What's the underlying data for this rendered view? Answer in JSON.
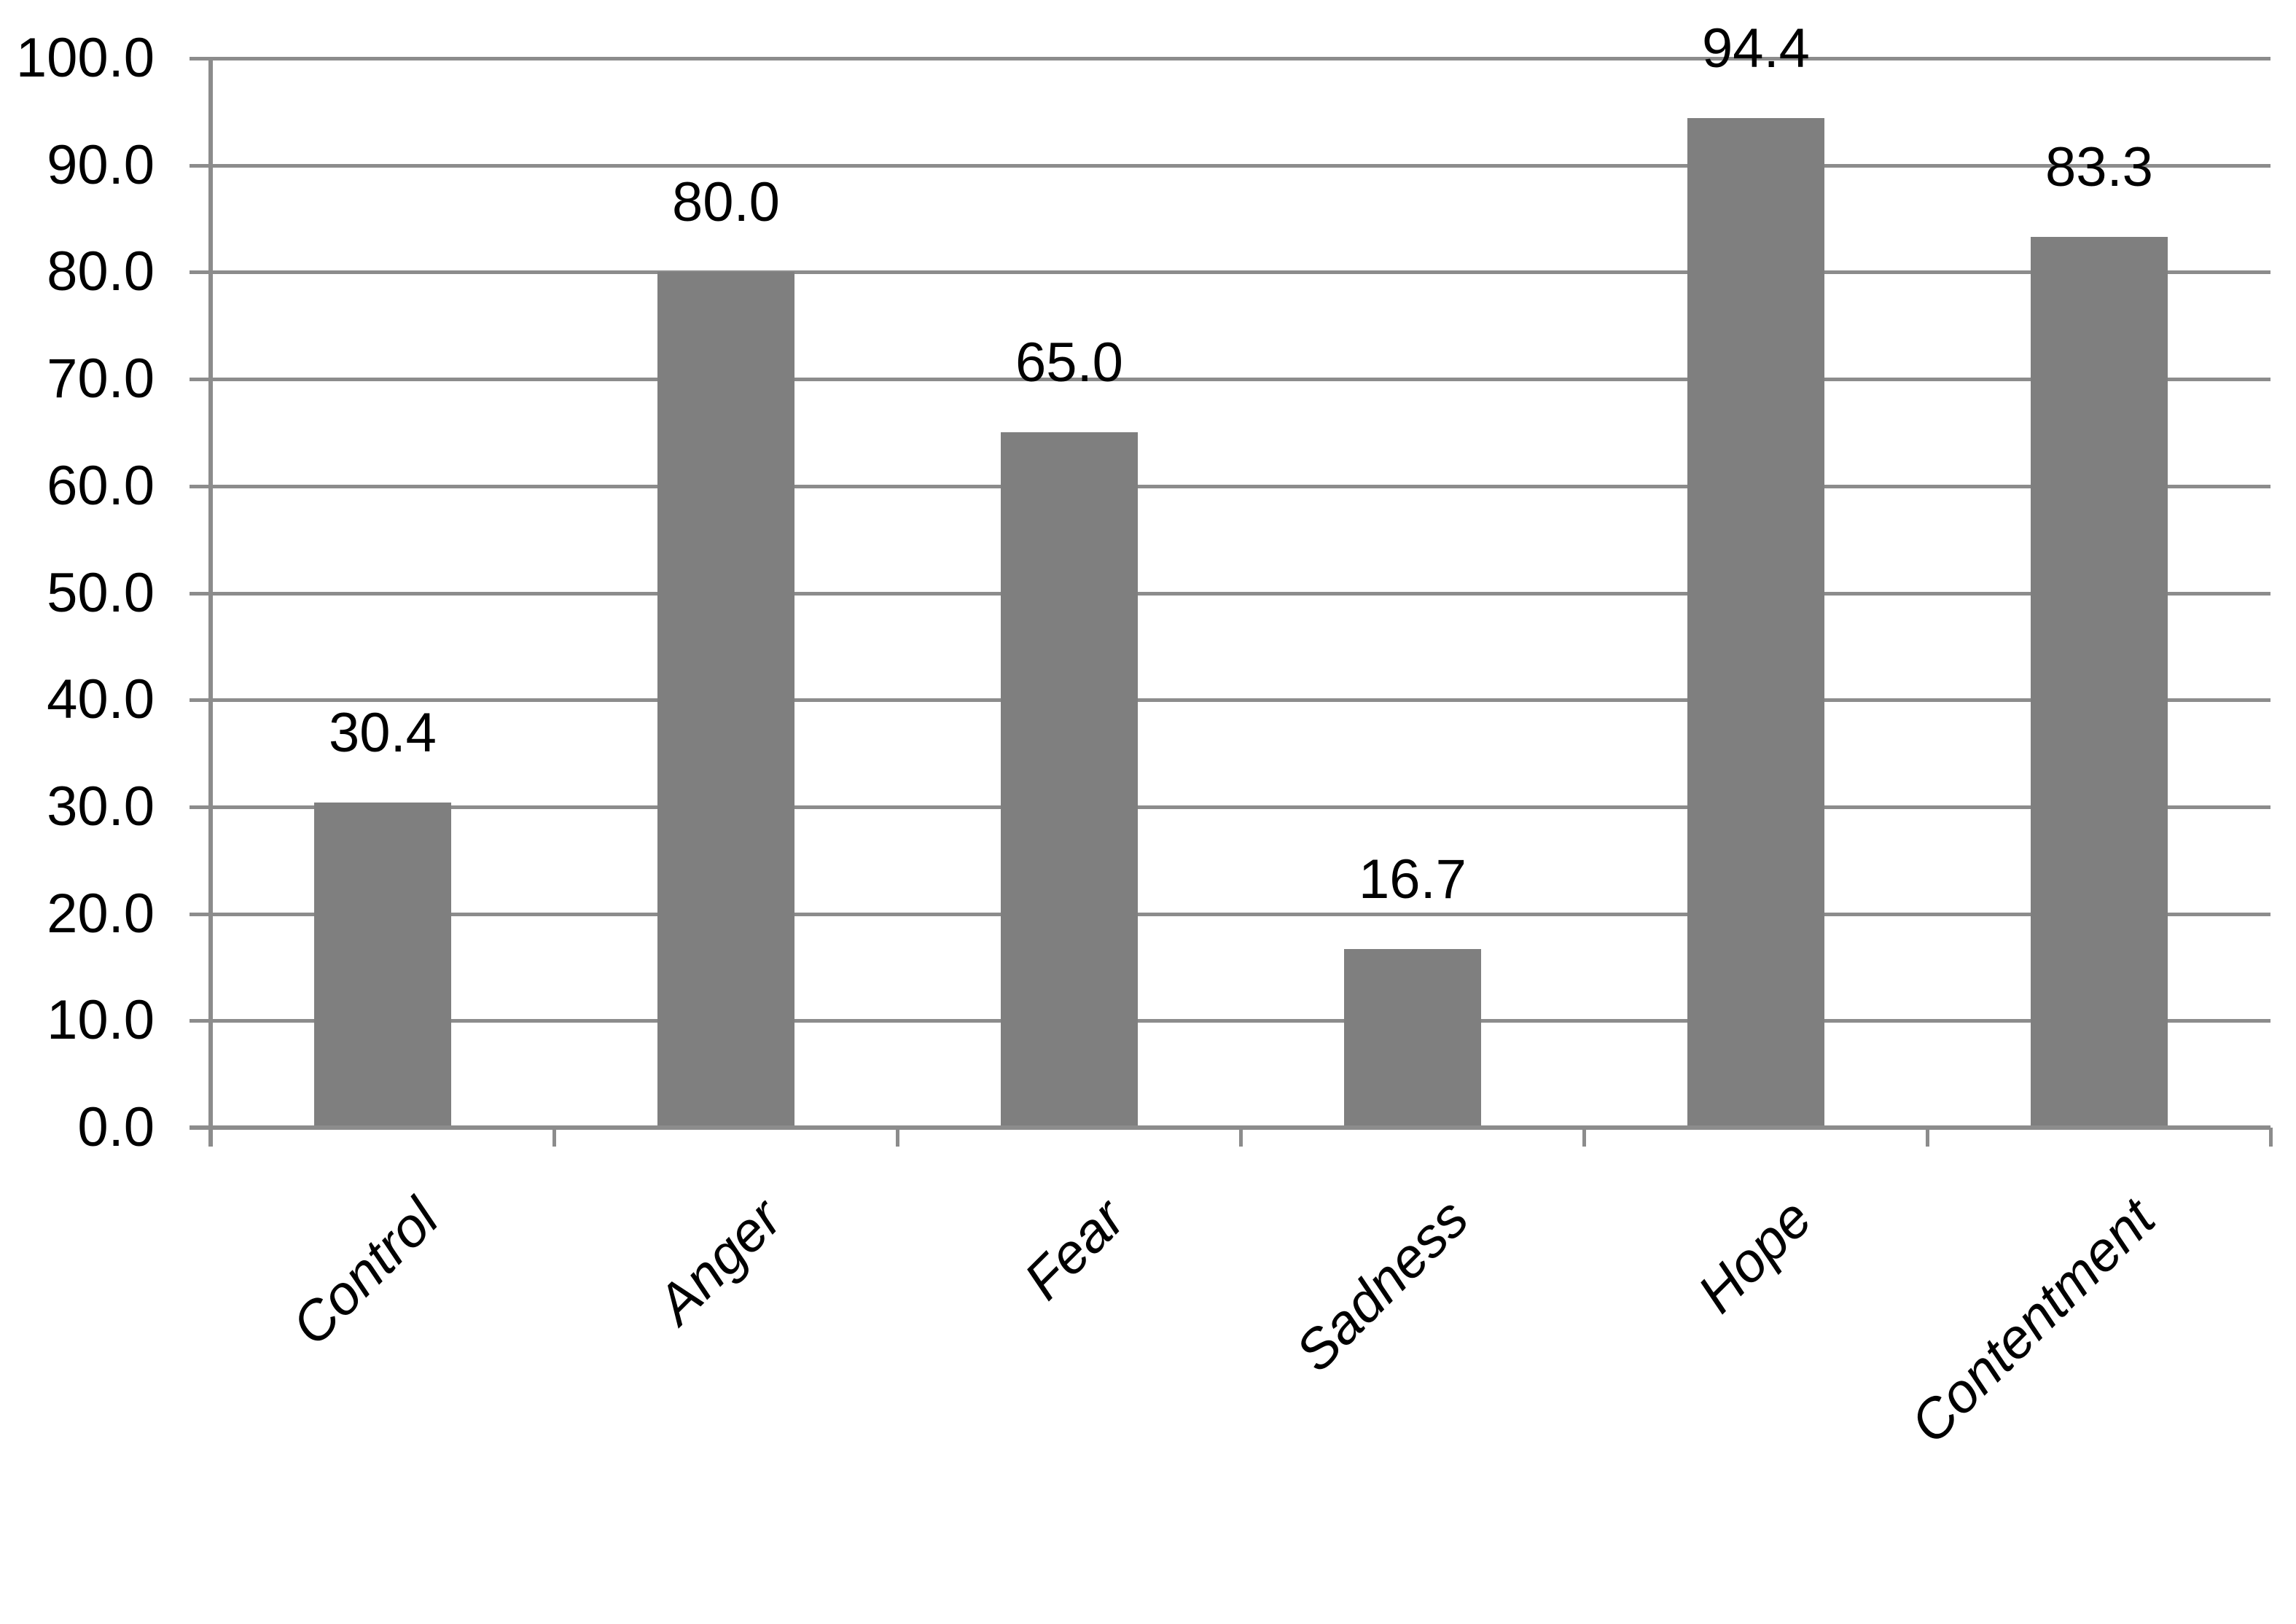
{
  "chart_data": {
    "type": "bar",
    "title": "",
    "xlabel": "",
    "ylabel": "",
    "categories": [
      "Control",
      "Anger",
      "Fear",
      "Sadness",
      "Hope",
      "Contentment"
    ],
    "values": [
      30.4,
      80.0,
      65.0,
      16.7,
      94.4,
      83.3
    ],
    "value_labels": [
      "30.4",
      "80.0",
      "65.0",
      "16.7",
      "94.4",
      "83.3"
    ],
    "ylim": [
      0,
      100
    ],
    "ytick_step": 10,
    "ytick_labels": [
      "0.0",
      "10.0",
      "20.0",
      "30.0",
      "40.0",
      "50.0",
      "60.0",
      "70.0",
      "80.0",
      "90.0",
      "100.0"
    ],
    "grid": true,
    "legend": false,
    "x_labels_rotation_deg": 45,
    "x_labels_italic": true,
    "colors": {
      "bar": "#7f7f7f",
      "gridline": "#8c8c8c",
      "axis": "#8c8c8c",
      "text": "#000000",
      "background": "#ffffff"
    }
  }
}
